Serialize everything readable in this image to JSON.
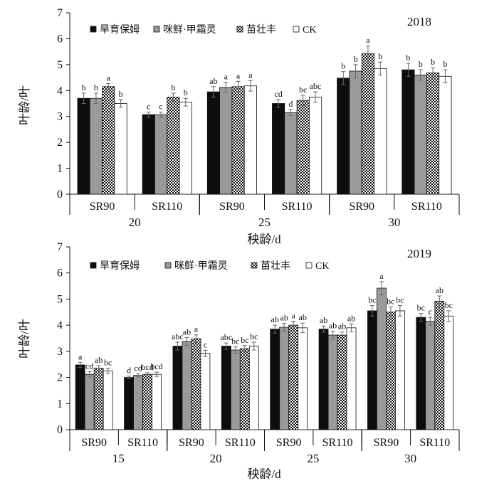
{
  "colors": {
    "s1": "#0d0d0d",
    "s2": "#9a9a9a",
    "s3": "checker",
    "s4": "#ffffff"
  },
  "chart_data": [
    {
      "type": "bar",
      "year": "2018",
      "ylabel": "叶龄/叶",
      "xlabel": "秧龄/d",
      "ylim": [
        0,
        7
      ],
      "yticks": [
        0,
        1,
        2,
        3,
        4,
        5,
        6,
        7
      ],
      "legend_position": "top",
      "categories": [
        "SR90",
        "SR110",
        "SR90",
        "SR110",
        "SR90",
        "SR110"
      ],
      "age_groups": [
        {
          "label": "20",
          "span": 2
        },
        {
          "label": "25",
          "span": 2
        },
        {
          "label": "30",
          "span": 2
        }
      ],
      "series": [
        {
          "name": "旱育保姆",
          "values": [
            3.7,
            3.07,
            3.95,
            3.5,
            4.48,
            4.8
          ],
          "errors": [
            0.2,
            0.1,
            0.2,
            0.15,
            0.25,
            0.25
          ],
          "letters": [
            "b",
            "c",
            "ab",
            "cd",
            "b",
            "b"
          ]
        },
        {
          "name": "咪鲜·甲霜灵",
          "values": [
            3.7,
            3.07,
            4.12,
            3.15,
            4.75,
            4.6
          ],
          "errors": [
            0.2,
            0.1,
            0.2,
            0.12,
            0.25,
            0.2
          ],
          "letters": [
            "b",
            "c",
            "a",
            "d",
            "b",
            "b"
          ]
        },
        {
          "name": "苗壮丰",
          "values": [
            4.15,
            3.75,
            4.15,
            3.62,
            5.42,
            4.68
          ],
          "errors": [
            0.12,
            0.15,
            0.2,
            0.2,
            0.3,
            0.2
          ],
          "letters": [
            "a",
            "b",
            "a",
            "bc",
            "a",
            "b"
          ]
        },
        {
          "name": "CK",
          "values": [
            3.5,
            3.55,
            4.18,
            3.75,
            4.85,
            4.55
          ],
          "errors": [
            0.15,
            0.15,
            0.2,
            0.2,
            0.25,
            0.25
          ],
          "letters": [
            "b",
            "b",
            "a",
            "abc",
            "b",
            "b"
          ]
        }
      ]
    },
    {
      "type": "bar",
      "year": "2019",
      "ylabel": "叶龄/叶",
      "xlabel": "秧龄/d",
      "ylim": [
        0,
        7
      ],
      "yticks": [
        0,
        1,
        2,
        3,
        4,
        5,
        6,
        7
      ],
      "legend_position": "top",
      "categories": [
        "SR90",
        "SR110",
        "SR90",
        "SR110",
        "SR90",
        "SR110",
        "SR90",
        "SR110"
      ],
      "age_groups": [
        {
          "label": "15",
          "span": 2
        },
        {
          "label": "20",
          "span": 2
        },
        {
          "label": "25",
          "span": 2
        },
        {
          "label": "30",
          "span": 2
        }
      ],
      "series": [
        {
          "name": "旱育保姆",
          "values": [
            2.48,
            2.0,
            3.2,
            3.2,
            3.85,
            3.85,
            4.55,
            4.3
          ],
          "errors": [
            0.1,
            0.05,
            0.15,
            0.12,
            0.15,
            0.12,
            0.2,
            0.15
          ],
          "letters": [
            "a",
            "d",
            "abc",
            "abc",
            "ab",
            "ab",
            "bc",
            "bc"
          ]
        },
        {
          "name": "咪鲜·甲霜灵",
          "values": [
            2.12,
            2.08,
            3.38,
            3.05,
            3.92,
            3.62,
            5.42,
            4.15
          ],
          "errors": [
            0.1,
            0.06,
            0.15,
            0.12,
            0.15,
            0.15,
            0.25,
            0.15
          ],
          "letters": [
            "cd",
            "cd",
            "ab",
            "bc",
            "ab",
            "ab",
            "a",
            "c"
          ]
        },
        {
          "name": "苗壮丰",
          "values": [
            2.35,
            2.12,
            3.48,
            3.1,
            4.0,
            3.62,
            4.5,
            4.92
          ],
          "errors": [
            0.1,
            0.06,
            0.15,
            0.12,
            0.15,
            0.12,
            0.2,
            0.2
          ],
          "letters": [
            "ab",
            "bcd",
            "a",
            "bc",
            "a",
            "ab",
            "bc",
            "ab"
          ]
        },
        {
          "name": "CK",
          "values": [
            2.25,
            2.12,
            2.92,
            3.2,
            3.9,
            3.9,
            4.55,
            4.35
          ],
          "errors": [
            0.1,
            0.08,
            0.12,
            0.15,
            0.18,
            0.15,
            0.2,
            0.2
          ],
          "letters": [
            "bc",
            "bcd",
            "c",
            "bc",
            "ab",
            "ab",
            "bc",
            "bc"
          ]
        }
      ]
    }
  ]
}
